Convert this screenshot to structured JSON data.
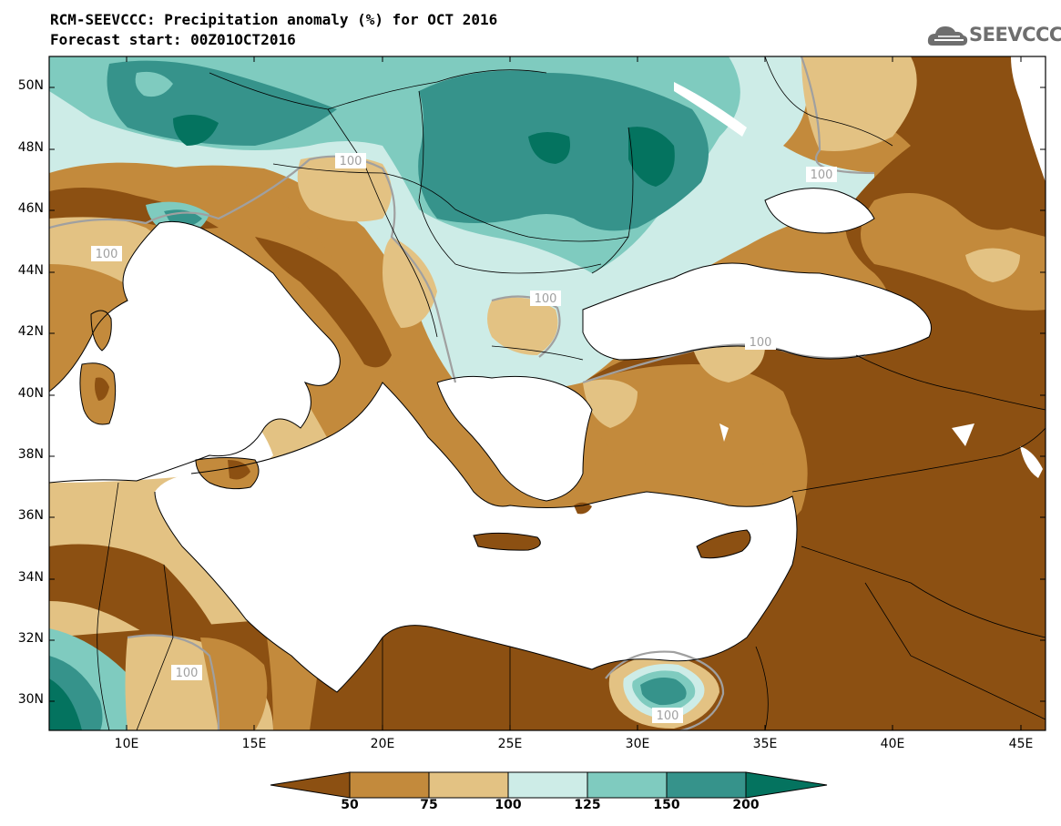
{
  "header": {
    "title": "RCM-SEEVCCC: Precipitation anomaly (%) for OCT 2016",
    "subtitle": "Forecast start: 00Z01OCT2016"
  },
  "logo": {
    "text": "SEEVCCC",
    "icon": "cloud-icon"
  },
  "map": {
    "lat_labels": [
      "50N",
      "48N",
      "46N",
      "44N",
      "42N",
      "40N",
      "38N",
      "36N",
      "34N",
      "32N",
      "30N"
    ],
    "lon_labels": [
      "10E",
      "15E",
      "20E",
      "25E",
      "30E",
      "35E",
      "40E",
      "45E"
    ],
    "contour_label": "100"
  },
  "colorbar": {
    "labels": [
      "50",
      "75",
      "100",
      "125",
      "150",
      "200"
    ],
    "colors": [
      "#8c5012",
      "#c38a3c",
      "#e3c283",
      "#cdece7",
      "#7fcbbf",
      "#36938b",
      "#04735f"
    ]
  },
  "colors": {
    "dark_brown": "#8c5012",
    "brown": "#c38a3c",
    "tan": "#e3c283",
    "pale_teal": "#cdece7",
    "teal": "#7fcbbf",
    "dark_teal": "#36938b",
    "deep_teal": "#04735f",
    "contour_100": "#a0a0a0"
  }
}
